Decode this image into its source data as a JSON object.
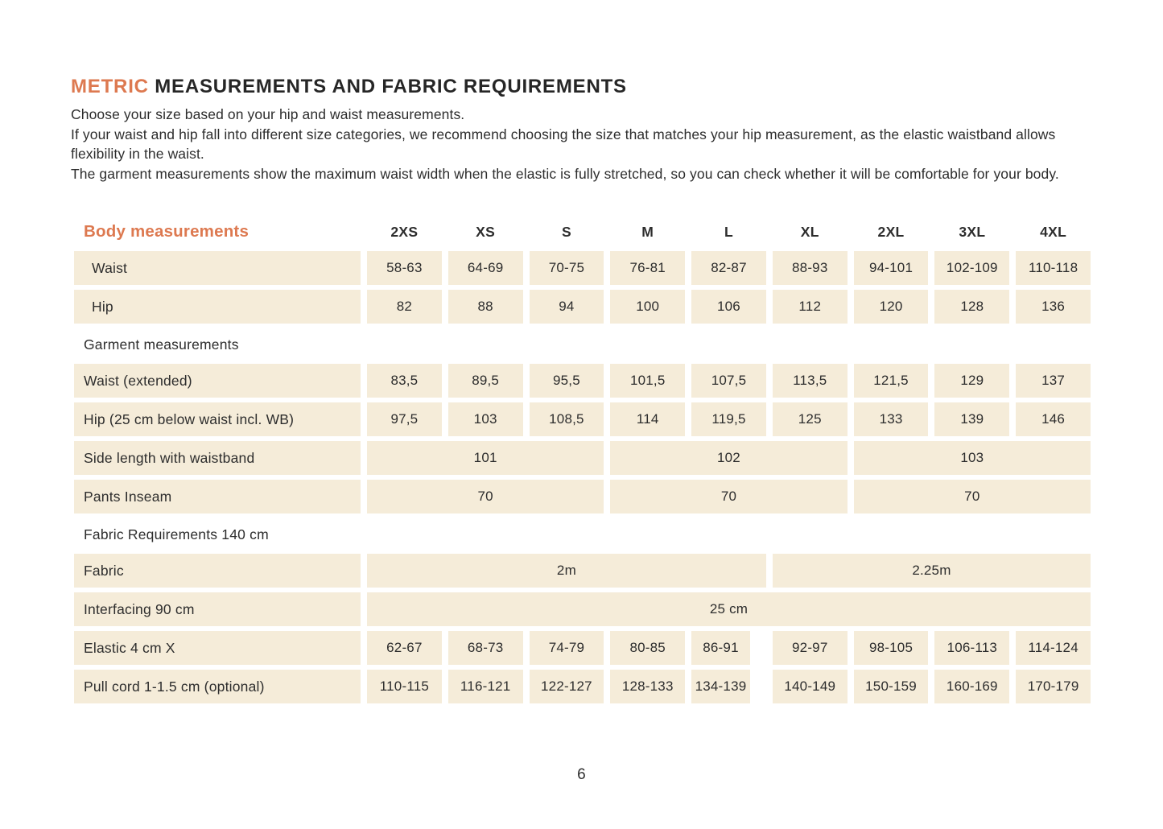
{
  "colors": {
    "accent_orange": "#dd7950",
    "cell_beige": "#f5ecd9",
    "text_dark": "#2d2d2d"
  },
  "header": {
    "title_highlight": "METRIC",
    "title_rest": " MEASUREMENTS AND FABRIC REQUIREMENTS"
  },
  "intro": {
    "lines": [
      "Choose your size based on your hip and waist measurements.",
      "If your waist and hip fall into different size categories, we recommend choosing the size that matches your hip measurement, as the elastic waistband allows flexibility in the waist.",
      "The garment measurements show the maximum waist width when the elastic is fully stretched, so you can check whether it will be comfortable for your body."
    ]
  },
  "table": {
    "size_header": {
      "label": "Body measurements",
      "sizes": [
        "2XS",
        "XS",
        "S",
        "M",
        "L",
        "XL",
        "2XL",
        "3XL",
        "4XL"
      ]
    },
    "rows": [
      {
        "kind": "row",
        "indent": true,
        "label": "Waist",
        "cells": [
          {
            "v": "58-63"
          },
          {
            "v": "64-69"
          },
          {
            "v": "70-75"
          },
          {
            "v": "76-81"
          },
          {
            "v": "82-87"
          },
          {
            "v": "88-93"
          },
          {
            "v": "94-101"
          },
          {
            "v": "102-109"
          },
          {
            "v": "110-118"
          }
        ]
      },
      {
        "kind": "row",
        "indent": true,
        "label": "Hip",
        "cells": [
          {
            "v": "82"
          },
          {
            "v": "88"
          },
          {
            "v": "94"
          },
          {
            "v": "100"
          },
          {
            "v": "106"
          },
          {
            "v": "112"
          },
          {
            "v": "120"
          },
          {
            "v": "128"
          },
          {
            "v": "136"
          }
        ]
      },
      {
        "kind": "section",
        "label": "Garment measurements"
      },
      {
        "kind": "row",
        "label": "Waist (extended)",
        "cells": [
          {
            "v": "83,5"
          },
          {
            "v": "89,5"
          },
          {
            "v": "95,5"
          },
          {
            "v": "101,5"
          },
          {
            "v": "107,5"
          },
          {
            "v": "113,5"
          },
          {
            "v": "121,5"
          },
          {
            "v": "129"
          },
          {
            "v": "137"
          }
        ]
      },
      {
        "kind": "row",
        "label": "Hip (25 cm below waist incl. WB)",
        "cells": [
          {
            "v": "97,5"
          },
          {
            "v": "103"
          },
          {
            "v": "108,5"
          },
          {
            "v": "114"
          },
          {
            "v": "119,5"
          },
          {
            "v": "125"
          },
          {
            "v": "133"
          },
          {
            "v": "139"
          },
          {
            "v": "146"
          }
        ]
      },
      {
        "kind": "row",
        "label": "Side length with waistband",
        "cells": [
          {
            "v": "101",
            "span": 3
          },
          {
            "v": "102",
            "span": 3
          },
          {
            "v": "103",
            "span": 3
          }
        ]
      },
      {
        "kind": "row",
        "label": "Pants Inseam",
        "cells": [
          {
            "v": "70",
            "span": 3
          },
          {
            "v": "70",
            "span": 3
          },
          {
            "v": "70",
            "span": 3
          }
        ]
      },
      {
        "kind": "section",
        "label": "Fabric Requirements 140 cm"
      },
      {
        "kind": "row",
        "label": "Fabric",
        "cells": [
          {
            "v": "2m",
            "span": 5
          },
          {
            "v": "2.25m",
            "span": 4
          }
        ]
      },
      {
        "kind": "row",
        "label": "Interfacing 90 cm",
        "cells": [
          {
            "v": "25 cm",
            "span": 9
          }
        ]
      },
      {
        "kind": "row",
        "label": "Elastic 4 cm X",
        "gap_after_col": 5,
        "cells": [
          {
            "v": "62-67"
          },
          {
            "v": "68-73"
          },
          {
            "v": "74-79"
          },
          {
            "v": "80-85"
          },
          {
            "v": "86-91"
          },
          {
            "v": "92-97"
          },
          {
            "v": "98-105"
          },
          {
            "v": "106-113"
          },
          {
            "v": "114-124"
          }
        ]
      },
      {
        "kind": "row",
        "label": "Pull cord 1-1.5 cm (optional)",
        "gap_after_col": 5,
        "cells": [
          {
            "v": "110-115"
          },
          {
            "v": "116-121"
          },
          {
            "v": "122-127"
          },
          {
            "v": "128-133"
          },
          {
            "v": "134-139"
          },
          {
            "v": "140-149"
          },
          {
            "v": "150-159"
          },
          {
            "v": "160-169"
          },
          {
            "v": "170-179"
          }
        ]
      }
    ]
  },
  "footer": {
    "page_number": "6"
  }
}
